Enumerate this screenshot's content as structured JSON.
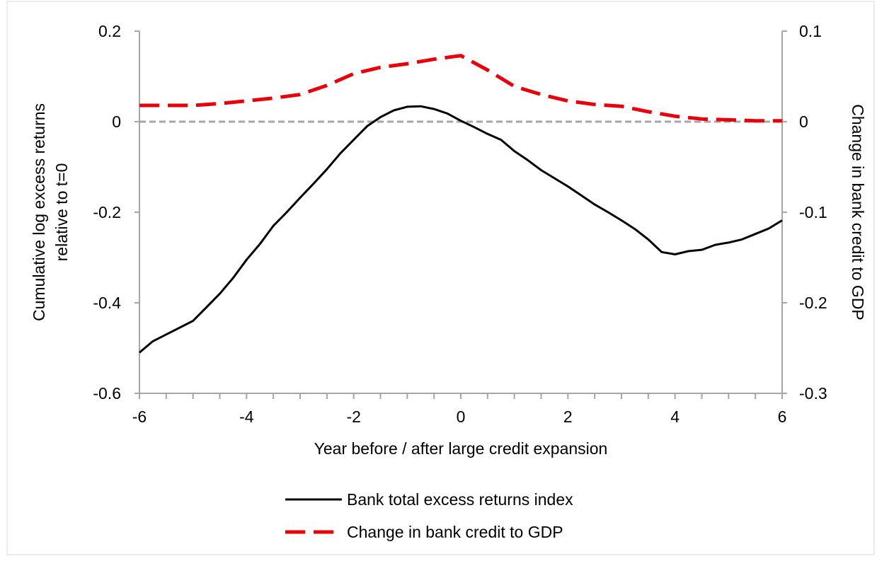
{
  "chart_data": {
    "type": "line",
    "xlabel": "Year before / after large credit expansion",
    "ylabel_left_lines": [
      "Cumulative log excess returns",
      "relative to t=0"
    ],
    "ylabel_right": "Change in bank credit to GDP",
    "xlim": [
      -6,
      6
    ],
    "ylim_left": [
      -0.6,
      0.2
    ],
    "ylim_right": [
      -0.3,
      0.1
    ],
    "x_ticks": [
      -6,
      -4,
      -2,
      0,
      2,
      4,
      6
    ],
    "x_ticks_minor": [
      -5.5,
      -5,
      -4.5,
      -3.5,
      -3,
      -2.5,
      -1.5,
      -1,
      -0.5,
      0.5,
      1,
      1.5,
      2.5,
      3,
      3.5,
      4.5,
      5,
      5.5
    ],
    "x_tick_labels": [
      "-6",
      "-4",
      "-2",
      "0",
      "2",
      "4",
      "6"
    ],
    "y_left_ticks": [
      0.2,
      0,
      -0.2,
      -0.4,
      -0.6
    ],
    "y_left_tick_labels": [
      "0.2",
      "0",
      "-0.2",
      "-0.4",
      "-0.6"
    ],
    "y_right_ticks": [
      0.1,
      0,
      -0.1,
      -0.2,
      -0.3
    ],
    "y_right_tick_labels": [
      "0.1",
      "0",
      "-0.1",
      "-0.2",
      "-0.3"
    ],
    "zero_line": true,
    "grid": false,
    "legend_position": "bottom",
    "series": [
      {
        "name": "Bank total excess returns index",
        "axis": "left",
        "style": "solid",
        "color": "#000000",
        "x": [
          -6,
          -5.75,
          -5.5,
          -5.25,
          -5,
          -4.75,
          -4.5,
          -4.25,
          -4,
          -3.75,
          -3.5,
          -3.25,
          -3,
          -2.75,
          -2.5,
          -2.25,
          -2,
          -1.75,
          -1.5,
          -1.25,
          -1,
          -0.75,
          -0.5,
          -0.25,
          0,
          0.25,
          0.5,
          0.75,
          1,
          1.25,
          1.5,
          1.75,
          2,
          2.25,
          2.5,
          2.75,
          3,
          3.25,
          3.5,
          3.75,
          4,
          4.25,
          4.5,
          4.75,
          5,
          5.25,
          5.5,
          5.75,
          6
        ],
        "y": [
          -0.51,
          -0.485,
          -0.47,
          -0.455,
          -0.44,
          -0.41,
          -0.38,
          -0.345,
          -0.305,
          -0.27,
          -0.23,
          -0.2,
          -0.168,
          -0.137,
          -0.105,
          -0.07,
          -0.04,
          -0.01,
          0.01,
          0.025,
          0.033,
          0.034,
          0.028,
          0.018,
          0.002,
          -0.012,
          -0.027,
          -0.04,
          -0.065,
          -0.085,
          -0.107,
          -0.125,
          -0.143,
          -0.163,
          -0.183,
          -0.2,
          -0.218,
          -0.237,
          -0.26,
          -0.288,
          -0.293,
          -0.286,
          -0.283,
          -0.272,
          -0.267,
          -0.26,
          -0.248,
          -0.236,
          -0.218
        ]
      },
      {
        "name": "Change in bank credit to GDP",
        "axis": "right",
        "style": "dashed",
        "color": "#e8000b",
        "x": [
          -6,
          -5.5,
          -5,
          -4.5,
          -4,
          -3.5,
          -3,
          -2.5,
          -2,
          -1.5,
          -1,
          -0.5,
          0,
          0.5,
          1,
          1.5,
          2,
          2.5,
          3,
          3.5,
          4,
          4.5,
          5,
          5.5,
          6
        ],
        "y": [
          0.018,
          0.018,
          0.018,
          0.02,
          0.023,
          0.026,
          0.03,
          0.04,
          0.053,
          0.06,
          0.064,
          0.069,
          0.073,
          0.057,
          0.039,
          0.03,
          0.023,
          0.019,
          0.017,
          0.011,
          0.006,
          0.003,
          0.002,
          0.001,
          0.001
        ]
      }
    ]
  }
}
